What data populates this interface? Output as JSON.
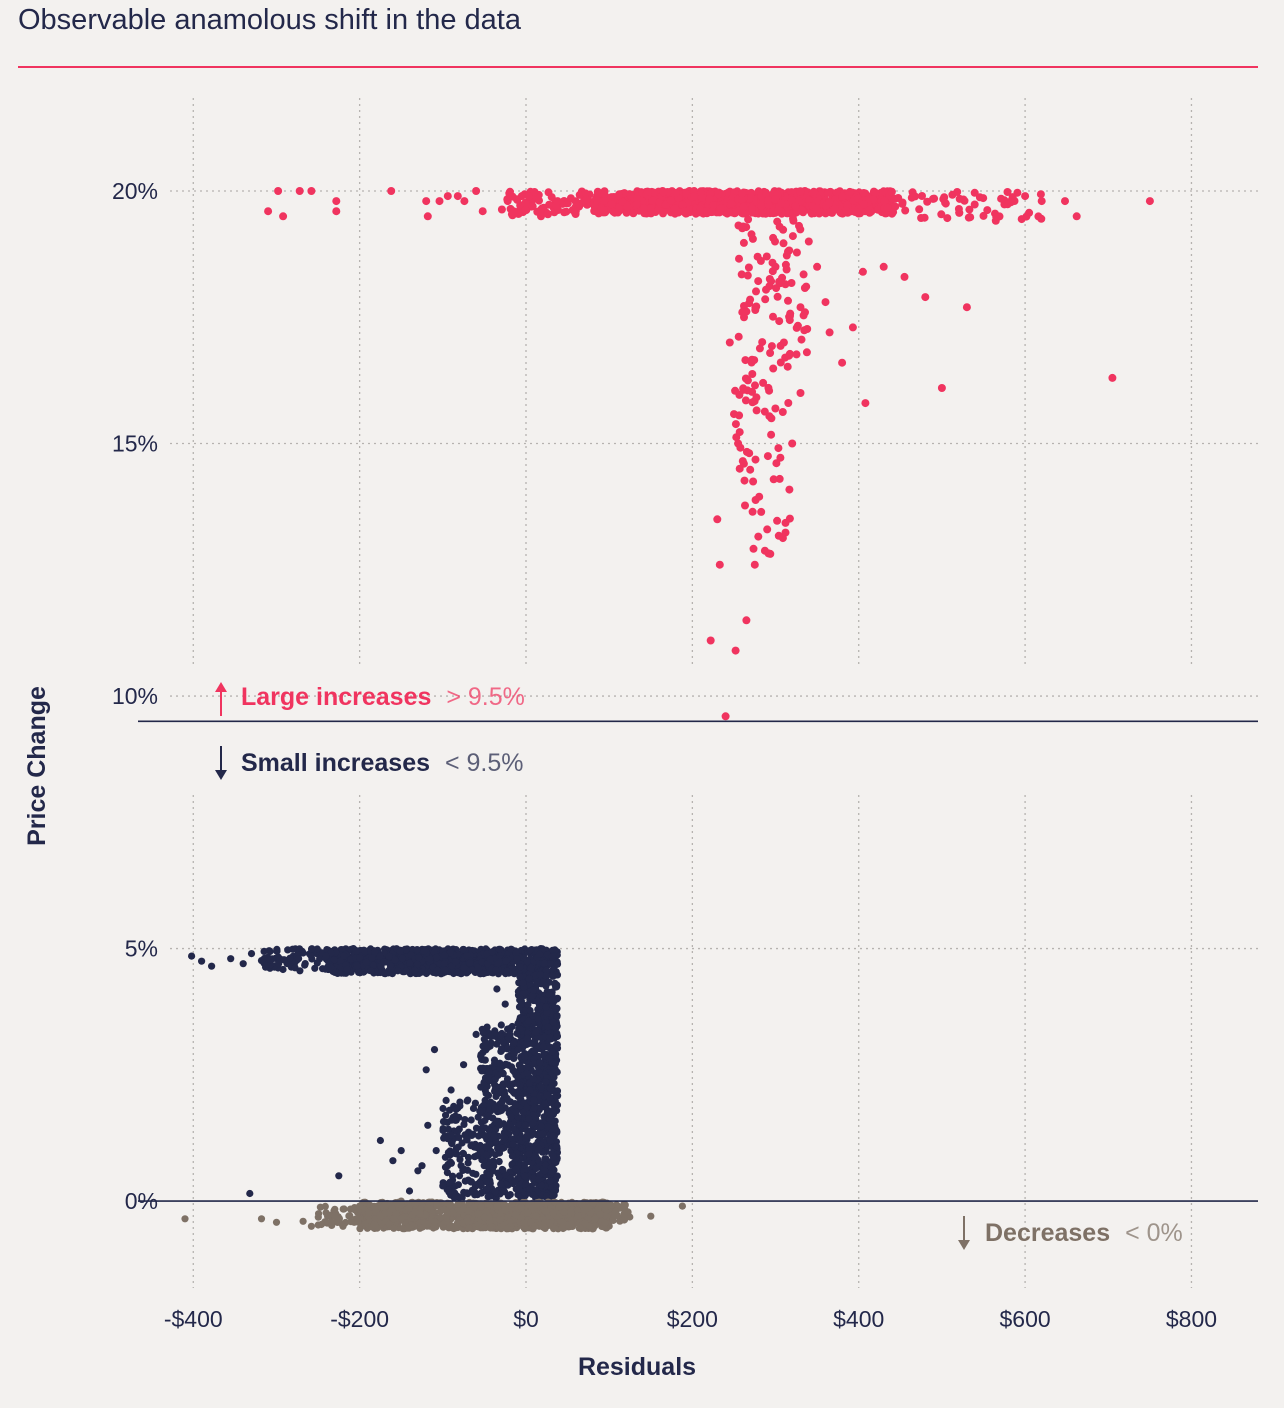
{
  "header": {
    "title": "Observable anamolous shift in the data"
  },
  "chart_data": {
    "type": "scatter",
    "title": "Observable anamolous shift in the data",
    "xlabel": "Residuals",
    "ylabel": "Price Change",
    "xlim": [
      -440,
      880
    ],
    "ylim": [
      -1.8,
      22
    ],
    "x_ticks": [
      {
        "value": -400,
        "label": "-$400"
      },
      {
        "value": -200,
        "label": "-$200"
      },
      {
        "value": 0,
        "label": "$0"
      },
      {
        "value": 200,
        "label": "$200"
      },
      {
        "value": 400,
        "label": "$400"
      },
      {
        "value": 600,
        "label": "$600"
      },
      {
        "value": 800,
        "label": "$800"
      }
    ],
    "y_ticks": [
      {
        "value": 20,
        "label": "20%"
      },
      {
        "value": 15,
        "label": "15%"
      },
      {
        "value": 10,
        "label": "10%"
      },
      {
        "value": 5,
        "label": "5%"
      },
      {
        "value": 0,
        "label": "0%"
      }
    ],
    "grid": "dotted",
    "thresholds": [
      9.5,
      0
    ],
    "colors": {
      "large": "#f0345f",
      "small": "#23284a",
      "decrease": "#7e7166",
      "grid": "#b6b3b0",
      "line": "#23284a"
    },
    "annotations": {
      "large": {
        "label": "Large increases",
        "condition": "> 9.5%"
      },
      "small": {
        "label": "Small increases",
        "condition": "< 9.5%"
      },
      "decrease": {
        "label": "Decreases",
        "condition": "< 0%"
      }
    },
    "series": [
      {
        "name": "Large increases",
        "key": "large",
        "points": [
          [
            -310,
            19.6
          ],
          [
            -298,
            20.0
          ],
          [
            -292,
            19.5
          ],
          [
            -272,
            20.0
          ],
          [
            -258,
            20.0
          ],
          [
            -228,
            19.6
          ],
          [
            -228,
            19.8
          ],
          [
            -162,
            20.0
          ],
          [
            -120,
            19.8
          ],
          [
            -118,
            19.5
          ],
          [
            -104,
            19.8
          ],
          [
            -94,
            19.9
          ],
          [
            -82,
            19.9
          ],
          [
            -74,
            19.8
          ],
          [
            -60,
            20.0
          ],
          [
            -52,
            19.6
          ],
          [
            -22,
            19.8
          ],
          [
            -15,
            19.6
          ],
          [
            -5,
            19.9
          ],
          [
            8,
            19.7
          ],
          [
            18,
            19.5
          ],
          [
            38,
            19.8
          ],
          [
            705,
            16.3
          ],
          [
            750,
            19.8
          ],
          [
            648,
            19.8
          ],
          [
            662,
            19.5
          ],
          [
            620,
            19.8
          ],
          [
            600,
            19.9
          ],
          [
            530,
            17.7
          ],
          [
            500,
            16.1
          ],
          [
            480,
            17.9
          ],
          [
            455,
            18.3
          ],
          [
            430,
            18.5
          ],
          [
            405,
            18.4
          ],
          [
            393,
            17.3
          ],
          [
            380,
            16.6
          ],
          [
            360,
            17.8
          ],
          [
            340,
            19.0
          ],
          [
            300,
            18.5
          ],
          [
            310,
            17.0
          ],
          [
            330,
            16.0
          ],
          [
            320,
            15.0
          ],
          [
            305,
            14.3
          ],
          [
            290,
            13.3
          ],
          [
            275,
            12.6
          ],
          [
            265,
            11.5
          ],
          [
            252,
            10.9
          ],
          [
            233,
            12.6
          ],
          [
            222,
            11.1
          ],
          [
            240,
            9.6
          ],
          [
            230,
            13.5
          ],
          [
            330,
            17.7
          ],
          [
            315,
            18.8
          ],
          [
            350,
            18.5
          ],
          [
            408,
            15.8
          ],
          [
            365,
            17.2
          ],
          [
            295,
            15.5
          ],
          [
            285,
            16.2
          ],
          [
            260,
            17.6
          ],
          [
            245,
            17.0
          ],
          [
            255,
            15.0
          ],
          [
            262,
            14.6
          ]
        ],
        "clusters": [
          {
            "x": [
              80,
              440
            ],
            "y": [
              19.55,
              20.0
            ],
            "n": 900
          },
          {
            "x": [
              -30,
              80
            ],
            "y": [
              19.5,
              20.0
            ],
            "n": 80
          },
          {
            "x": [
              440,
              620
            ],
            "y": [
              19.4,
              20.0
            ],
            "n": 60
          },
          {
            "x": [
              255,
              340
            ],
            "y": [
              16.5,
              19.5
            ],
            "n": 90
          },
          {
            "x": [
              250,
              320
            ],
            "y": [
              12.8,
              16.5
            ],
            "n": 60
          }
        ]
      },
      {
        "name": "Small increases",
        "key": "small",
        "points": [
          [
            -402,
            4.85
          ],
          [
            -390,
            4.75
          ],
          [
            -378,
            4.65
          ],
          [
            -355,
            4.8
          ],
          [
            -340,
            4.7
          ],
          [
            -330,
            4.9
          ],
          [
            -332,
            0.15
          ],
          [
            -225,
            0.5
          ],
          [
            -175,
            1.2
          ],
          [
            -160,
            0.8
          ],
          [
            -150,
            1.0
          ],
          [
            -125,
            0.7
          ],
          [
            -118,
            1.5
          ],
          [
            -108,
            1.0
          ],
          [
            -85,
            1.6
          ],
          [
            -90,
            1.3
          ],
          [
            -130,
            0.6
          ],
          [
            -110,
            3.0
          ],
          [
            -120,
            2.6
          ],
          [
            -90,
            2.2
          ],
          [
            -75,
            2.7
          ],
          [
            -60,
            3.3
          ],
          [
            -70,
            2.0
          ],
          [
            -45,
            2.4
          ],
          [
            -55,
            1.1
          ],
          [
            -40,
            0.6
          ],
          [
            -100,
            0.3
          ],
          [
            -80,
            0.5
          ],
          [
            -140,
            0.2
          ],
          [
            -60,
            0.15
          ],
          [
            -35,
            4.2
          ],
          [
            -25,
            3.9
          ]
        ],
        "clusters": [
          {
            "x": [
              -240,
              38
            ],
            "y": [
              4.5,
              5.0
            ],
            "n": 1000
          },
          {
            "x": [
              -320,
              -240
            ],
            "y": [
              4.55,
              5.0
            ],
            "n": 70
          },
          {
            "x": [
              -10,
              38
            ],
            "y": [
              0.05,
              4.5
            ],
            "n": 900
          },
          {
            "x": [
              -55,
              -10
            ],
            "y": [
              0.05,
              3.5
            ],
            "n": 350
          },
          {
            "x": [
              -100,
              -55
            ],
            "y": [
              0.05,
              2.0
            ],
            "n": 120
          }
        ]
      },
      {
        "name": "Decreases",
        "key": "decrease",
        "points": [
          [
            -410,
            -0.35
          ],
          [
            -318,
            -0.35
          ],
          [
            -300,
            -0.42
          ],
          [
            -268,
            -0.4
          ],
          [
            -258,
            -0.5
          ],
          [
            -230,
            -0.3
          ],
          [
            -220,
            -0.5
          ],
          [
            -200,
            -0.1
          ],
          [
            -150,
            0.0
          ],
          [
            108,
            -0.2
          ],
          [
            118,
            -0.25
          ],
          [
            150,
            -0.3
          ],
          [
            188,
            -0.1
          ],
          [
            98,
            -0.1
          ]
        ],
        "clusters": [
          {
            "x": [
              -200,
              100
            ],
            "y": [
              -0.55,
              -0.02
            ],
            "n": 1300
          },
          {
            "x": [
              -250,
              -200
            ],
            "y": [
              -0.5,
              -0.1
            ],
            "n": 40
          },
          {
            "x": [
              100,
              125
            ],
            "y": [
              -0.4,
              -0.05
            ],
            "n": 25
          }
        ]
      }
    ]
  }
}
